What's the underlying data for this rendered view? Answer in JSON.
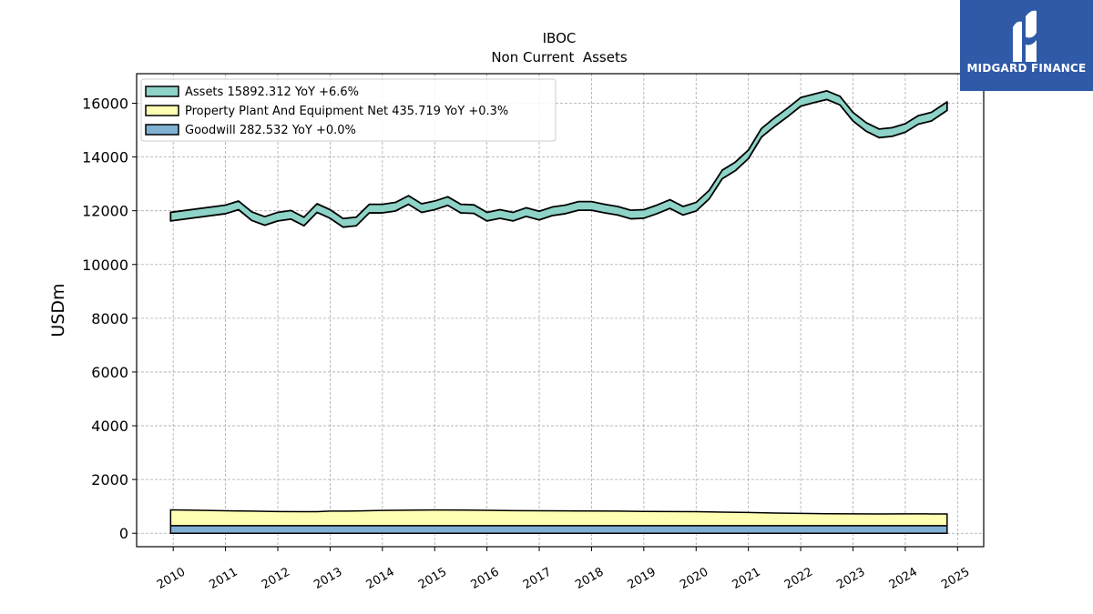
{
  "chart_data": {
    "type": "area",
    "title": "IBOC",
    "subtitle": "Non Current  Assets",
    "ylabel": "USDm",
    "xlabel": "",
    "ylim": [
      -500,
      17100
    ],
    "xlim": [
      2009.3,
      2025.5
    ],
    "yticks": [
      0,
      2000,
      4000,
      6000,
      8000,
      10000,
      12000,
      14000,
      16000
    ],
    "xticks": [
      "2010",
      "2011",
      "2012",
      "2013",
      "2014",
      "2015",
      "2016",
      "2017",
      "2018",
      "2019",
      "2020",
      "2021",
      "2022",
      "2023",
      "2024",
      "2025"
    ],
    "grid": true,
    "legend_position": "top-left",
    "series": [
      {
        "name": "Assets  15892.312 YoY +6.6%",
        "color": "#8dd3c7",
        "band": 320,
        "x": [
          2009.95,
          2011.0,
          2011.25,
          2011.5,
          2011.75,
          2012.0,
          2012.25,
          2012.5,
          2012.75,
          2013.0,
          2013.25,
          2013.5,
          2013.75,
          2014.0,
          2014.25,
          2014.5,
          2014.75,
          2015.0,
          2015.25,
          2015.5,
          2015.75,
          2016.0,
          2016.25,
          2016.5,
          2016.75,
          2017.0,
          2017.25,
          2017.5,
          2017.75,
          2018.0,
          2018.25,
          2018.5,
          2018.75,
          2019.0,
          2019.25,
          2019.5,
          2019.75,
          2020.0,
          2020.25,
          2020.5,
          2020.75,
          2021.0,
          2021.25,
          2021.5,
          2021.75,
          2022.0,
          2022.25,
          2022.5,
          2022.75,
          2023.0,
          2023.25,
          2023.5,
          2023.75,
          2024.0,
          2024.25,
          2024.5,
          2024.8
        ],
        "values": [
          11780,
          12050,
          12200,
          11800,
          11620,
          11780,
          11850,
          11600,
          12100,
          11880,
          11550,
          11600,
          12080,
          12080,
          12150,
          12400,
          12100,
          12200,
          12360,
          12080,
          12060,
          11780,
          11880,
          11780,
          11950,
          11820,
          11980,
          12050,
          12180,
          12180,
          12080,
          12000,
          11860,
          11880,
          12050,
          12250,
          12000,
          12150,
          12600,
          13350,
          13650,
          14100,
          14900,
          15300,
          15660,
          16050,
          16180,
          16300,
          16100,
          15500,
          15120,
          14880,
          14930,
          15080,
          15380,
          15500,
          15892
        ]
      },
      {
        "name": "Property Plant And Equipment Net  435.719 YoY +0.3%",
        "color": "#ffffb3",
        "values_note": "",
        "x": [
          2009.95,
          2010.5,
          2011.0,
          2011.5,
          2012.0,
          2012.5,
          2012.75,
          2013.0,
          2013.5,
          2014.0,
          2014.5,
          2015.0,
          2015.5,
          2016.0,
          2016.5,
          2017.0,
          2017.5,
          2018.0,
          2018.5,
          2019.0,
          2019.5,
          2020.0,
          2020.5,
          2021.0,
          2021.5,
          2022.0,
          2022.5,
          2023.0,
          2023.5,
          2024.0,
          2024.5,
          2024.8
        ],
        "values": [
          590,
          570,
          555,
          540,
          525,
          520,
          520,
          540,
          545,
          565,
          575,
          585,
          580,
          570,
          560,
          555,
          550,
          545,
          540,
          530,
          525,
          520,
          505,
          490,
          470,
          455,
          445,
          440,
          438,
          440,
          438,
          436
        ]
      },
      {
        "name": "Goodwill  282.532 YoY +0.0%",
        "color": "#80b1d3",
        "x": [
          2009.95,
          2024.8
        ],
        "values": [
          282.532,
          282.532
        ]
      }
    ]
  },
  "logo": {
    "text": "MIDGARD FINANCE"
  }
}
